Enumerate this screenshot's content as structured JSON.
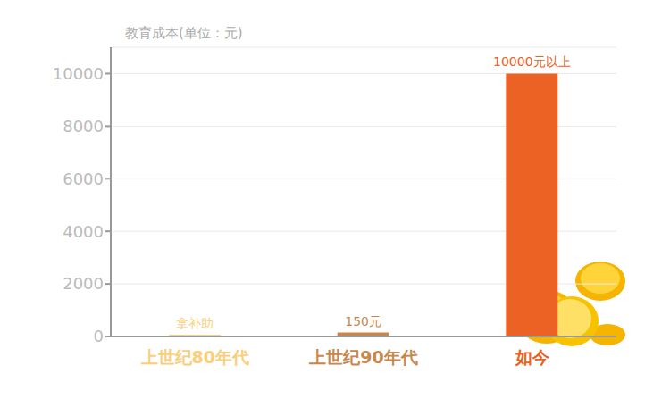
{
  "chart_data": {
    "type": "bar",
    "y_label": "教育成本(单位：元)",
    "categories": [
      "上世纪80年代",
      "上世纪90年代",
      "如今"
    ],
    "values": [
      70,
      150,
      10000
    ],
    "value_labels": [
      "拿补助",
      "150元",
      "10000元以上"
    ],
    "colors": [
      "#f9cf7b",
      "#c8874e",
      "#ec6124"
    ],
    "ylim": [
      0,
      11000
    ],
    "yticks": [
      0,
      2000,
      4000,
      6000,
      8000,
      10000
    ],
    "grid": true,
    "data_labels": true
  }
}
